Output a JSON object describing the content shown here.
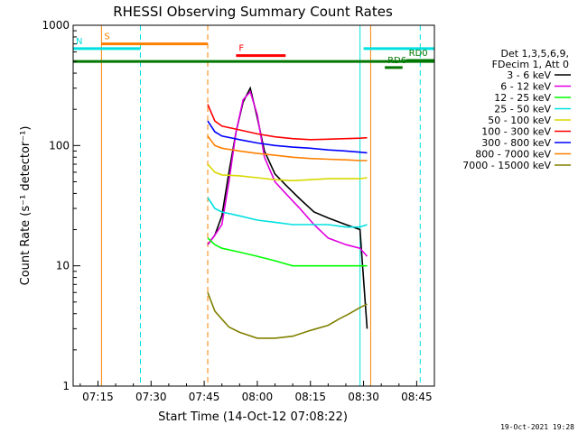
{
  "chart_data": {
    "type": "line",
    "title": "RHESSI Observing Summary Count Rates",
    "xlabel": "Start Time (14-Oct-12 07:08:22)",
    "ylabel": "Count Rate (s⁻¹ detector⁻¹)",
    "y_scale": "log",
    "ylim": [
      1,
      1000
    ],
    "xlim": [
      "07:08",
      "08:50"
    ],
    "x_ticks": [
      "07:15",
      "07:30",
      "07:45",
      "08:00",
      "08:15",
      "08:30",
      "08:45"
    ],
    "y_ticks": [
      "1",
      "10",
      "100",
      "1000"
    ],
    "legend_header": [
      "Det 1,3,5,6,9,",
      "FDecim 1, Att 0"
    ],
    "series": [
      {
        "name": "3 - 6 keV",
        "color": "#000000",
        "x": [
          "07:46",
          "07:48",
          "07:50",
          "07:52",
          "07:54",
          "07:56",
          "07:58",
          "08:00",
          "08:02",
          "08:05",
          "08:08",
          "08:12",
          "08:16",
          "08:20",
          "08:25",
          "08:29",
          "08:31"
        ],
        "y": [
          15,
          18,
          26,
          60,
          130,
          230,
          300,
          170,
          90,
          58,
          47,
          36,
          28,
          25,
          22,
          20,
          3
        ]
      },
      {
        "name": "6 - 12 keV",
        "color": "#e000e0",
        "x": [
          "07:46",
          "07:48",
          "07:50",
          "07:52",
          "07:54",
          "07:56",
          "07:58",
          "08:00",
          "08:02",
          "08:05",
          "08:08",
          "08:12",
          "08:16",
          "08:20",
          "08:25",
          "08:29",
          "08:31"
        ],
        "y": [
          15,
          18,
          22,
          50,
          130,
          240,
          280,
          180,
          80,
          50,
          40,
          30,
          22,
          17,
          15,
          14,
          12
        ]
      },
      {
        "name": "12 - 25 keV",
        "color": "#00ff00",
        "x": [
          "07:46",
          "07:48",
          "07:50",
          "07:55",
          "08:00",
          "08:05",
          "08:10",
          "08:15",
          "08:20",
          "08:25",
          "08:29",
          "08:31"
        ],
        "y": [
          17,
          15,
          14,
          13,
          12,
          11,
          10,
          10,
          10,
          10,
          10,
          10
        ]
      },
      {
        "name": "25 - 50 keV",
        "color": "#00e0e0",
        "x": [
          "07:46",
          "07:48",
          "07:50",
          "07:55",
          "08:00",
          "08:05",
          "08:10",
          "08:15",
          "08:20",
          "08:25",
          "08:29",
          "08:31"
        ],
        "y": [
          37,
          30,
          28,
          26,
          24,
          23,
          22,
          22,
          22,
          21,
          21,
          22
        ]
      },
      {
        "name": "50 - 100 keV",
        "color": "#d8d800",
        "x": [
          "07:46",
          "07:48",
          "07:50",
          "07:55",
          "08:00",
          "08:05",
          "08:10",
          "08:15",
          "08:20",
          "08:25",
          "08:29",
          "08:31"
        ],
        "y": [
          70,
          60,
          57,
          56,
          54,
          52,
          51,
          52,
          53,
          53,
          53,
          54
        ]
      },
      {
        "name": "100 - 300 keV",
        "color": "#ff0000",
        "x": [
          "07:46",
          "07:48",
          "07:50",
          "07:55",
          "08:00",
          "08:05",
          "08:10",
          "08:15",
          "08:20",
          "08:25",
          "08:29",
          "08:31"
        ],
        "y": [
          220,
          160,
          145,
          135,
          125,
          118,
          114,
          112,
          113,
          114,
          115,
          116
        ]
      },
      {
        "name": "300 - 800 keV",
        "color": "#0000ff",
        "x": [
          "07:46",
          "07:48",
          "07:50",
          "07:55",
          "08:00",
          "08:05",
          "08:10",
          "08:15",
          "08:20",
          "08:25",
          "08:29",
          "08:31"
        ],
        "y": [
          160,
          130,
          120,
          112,
          105,
          100,
          97,
          95,
          92,
          90,
          88,
          87
        ]
      },
      {
        "name": "800 - 7000 keV",
        "color": "#ff8000",
        "x": [
          "07:46",
          "07:48",
          "07:50",
          "07:55",
          "08:00",
          "08:05",
          "08:10",
          "08:15",
          "08:20",
          "08:25",
          "08:29",
          "08:31"
        ],
        "y": [
          120,
          100,
          95,
          90,
          86,
          83,
          80,
          78,
          77,
          76,
          75,
          75
        ]
      },
      {
        "name": "7000 - 15000 keV",
        "color": "#808000",
        "x": [
          "07:46",
          "07:48",
          "07:50",
          "07:52",
          "07:55",
          "08:00",
          "08:05",
          "08:10",
          "08:15",
          "08:20",
          "08:23",
          "08:26",
          "08:29",
          "08:31"
        ],
        "y": [
          6,
          4.2,
          3.6,
          3.1,
          2.8,
          2.5,
          2.5,
          2.6,
          2.9,
          3.2,
          3.6,
          4.0,
          4.5,
          4.8
        ]
      }
    ],
    "state_bars": [
      {
        "label": "S",
        "color": "#ff8000",
        "start": "07:16",
        "end": "07:46",
        "level": 700
      },
      {
        "label": "N",
        "color": "#00e0e0",
        "start": "07:08",
        "end": "07:27",
        "level": 640
      },
      {
        "label": "F",
        "color": "#ff0000",
        "start": "07:54",
        "end": "08:08",
        "level": 560
      },
      {
        "label": "",
        "color": "#007800",
        "start": "07:08",
        "end": "08:50",
        "level": 500
      },
      {
        "label": "",
        "color": "#00e0e0",
        "start": "08:30",
        "end": "08:50",
        "level": 640
      },
      {
        "label": "RD0",
        "color": "#007800",
        "start": "08:42",
        "end": "08:50",
        "level": 510
      },
      {
        "label": "RD6",
        "color": "#007800",
        "start": "08:36",
        "end": "08:41",
        "level": 445
      }
    ],
    "vertical_lines": [
      {
        "x": "07:16",
        "color": "#ff8000",
        "dashed": false
      },
      {
        "x": "07:27",
        "color": "#00e0e0",
        "dashed": true
      },
      {
        "x": "07:46",
        "color": "#ff8000",
        "dashed": true
      },
      {
        "x": "08:29",
        "color": "#00e0e0",
        "dashed": false
      },
      {
        "x": "08:32",
        "color": "#ff8000",
        "dashed": false
      },
      {
        "x": "08:46",
        "color": "#00e0e0",
        "dashed": true
      }
    ],
    "grid": false,
    "legend_position": "right"
  },
  "footer": {
    "timestamp": "19-Oct-2021 19:28"
  }
}
